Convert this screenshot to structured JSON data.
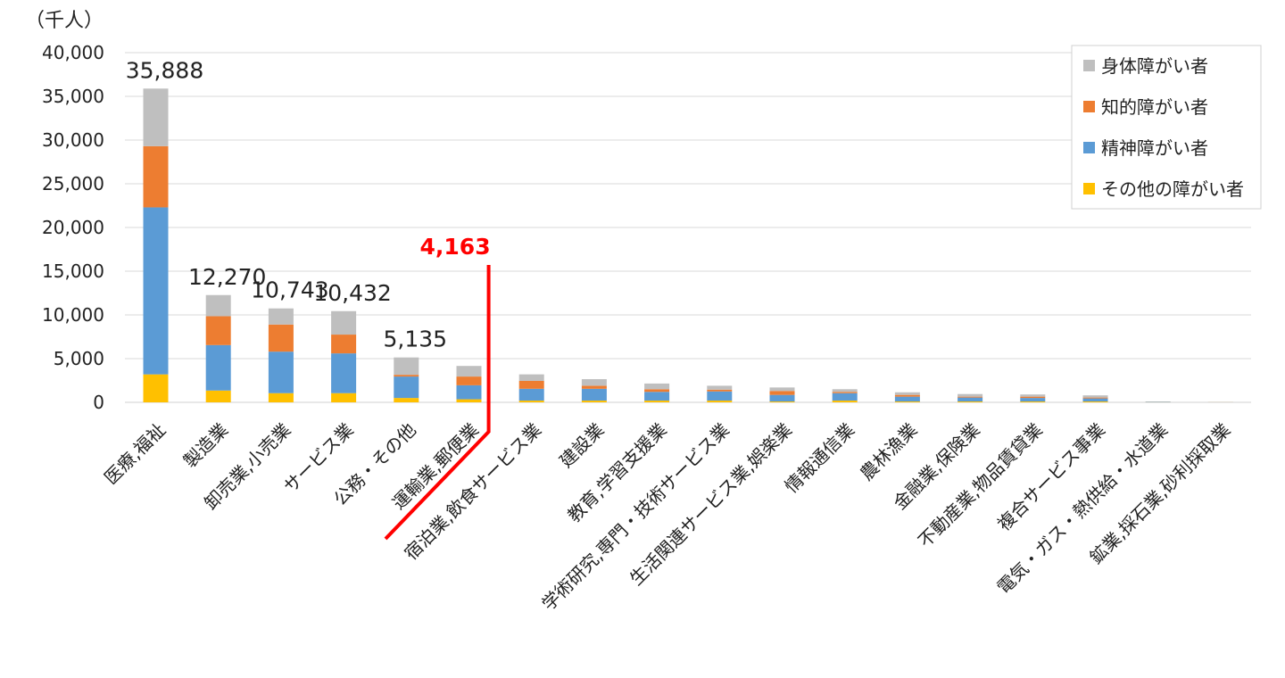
{
  "chart_data": {
    "type": "bar",
    "stacked": true,
    "unit_label": "（千人）",
    "ylim": [
      0,
      40000
    ],
    "yticks": [
      "40,000",
      "35,000",
      "30,000",
      "25,000",
      "20,000",
      "15,000",
      "10,000",
      "5,000",
      "0"
    ],
    "ytick_values": [
      40000,
      35000,
      30000,
      25000,
      20000,
      15000,
      10000,
      5000,
      0
    ],
    "grid": true,
    "legend_position": "top-right",
    "categories": [
      "医療,福祉",
      "製造業",
      "卸売業,小売業",
      "サービス業",
      "公務・その他",
      "運輸業,郵便業",
      "宿泊業,飲食サービス業",
      "建設業",
      "教育,学習支援業",
      "学術研究,専門・技術サービス業",
      "生活関連サービス業,娯楽業",
      "情報通信業",
      "農林漁業",
      "金融業,保険業",
      "不動産業,物品賃貸業",
      "複合サービス事業",
      "電気・ガス・熱供給・水道業",
      "鉱業,採石業,砂利採取業"
    ],
    "series": [
      {
        "name": "その他の障がい者",
        "color": "#ffc000",
        "values": [
          3200,
          1350,
          1050,
          1050,
          500,
          350,
          200,
          200,
          200,
          200,
          100,
          200,
          100,
          100,
          100,
          100,
          20,
          10
        ]
      },
      {
        "name": "精神障がい者",
        "color": "#5b9bd5",
        "values": [
          19100,
          5200,
          4750,
          4550,
          2450,
          1600,
          1350,
          1350,
          1000,
          1050,
          750,
          850,
          550,
          450,
          400,
          350,
          30,
          10
        ]
      },
      {
        "name": "知的障がい者",
        "color": "#ed7d31",
        "values": [
          7000,
          3300,
          3100,
          2150,
          200,
          1000,
          900,
          350,
          300,
          200,
          450,
          150,
          200,
          100,
          150,
          100,
          10,
          5
        ]
      },
      {
        "name": "身体障がい者",
        "color": "#bfbfbf",
        "values": [
          6588,
          2420,
          1843,
          2682,
          1985,
          1213,
          750,
          750,
          650,
          450,
          400,
          300,
          300,
          300,
          250,
          250,
          40,
          15
        ]
      }
    ],
    "legend_order": [
      "身体障がい者",
      "知的障がい者",
      "精神障がい者",
      "その他の障がい者"
    ],
    "total_labels": [
      {
        "index": 0,
        "text": "35,888"
      },
      {
        "index": 1,
        "text": "12,270"
      },
      {
        "index": 2,
        "text": "10,743"
      },
      {
        "index": 3,
        "text": "10,432"
      },
      {
        "index": 4,
        "text": "5,135"
      }
    ],
    "callout": {
      "text": "4,163",
      "after_index": 5,
      "color": "#ff0000"
    }
  }
}
